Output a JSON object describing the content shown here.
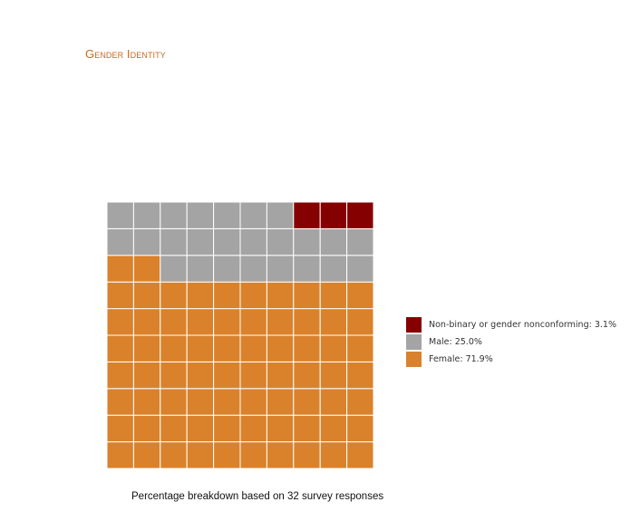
{
  "title": "Gender Identity",
  "caption": "Percentage breakdown based on 32 survey responses",
  "colors": {
    "title": "#c8691f",
    "nonbinary": "#850000",
    "male": "#a4a4a4",
    "female": "#d9822b",
    "grid_line": "#ffffff"
  },
  "chart_data": {
    "type": "waffle",
    "grid": {
      "rows": 10,
      "cols": 10
    },
    "fill_order": "bottom-up by row, left to right; final category fills top-right",
    "series": [
      {
        "name": "Female",
        "percent": 71.9,
        "cells": 72,
        "color_key": "female"
      },
      {
        "name": "Male",
        "percent": 25.0,
        "cells": 25,
        "color_key": "male"
      },
      {
        "name": "Non-binary or gender nonconforming",
        "percent": 3.1,
        "cells": 3,
        "color_key": "nonbinary"
      }
    ],
    "legend": {
      "placement": "right",
      "entries": [
        {
          "label": "Non-binary or gender nonconforming: 3.1%",
          "color_key": "nonbinary"
        },
        {
          "label": "Male: 25.0%",
          "color_key": "male"
        },
        {
          "label": "Female: 71.9%",
          "color_key": "female"
        }
      ]
    }
  }
}
